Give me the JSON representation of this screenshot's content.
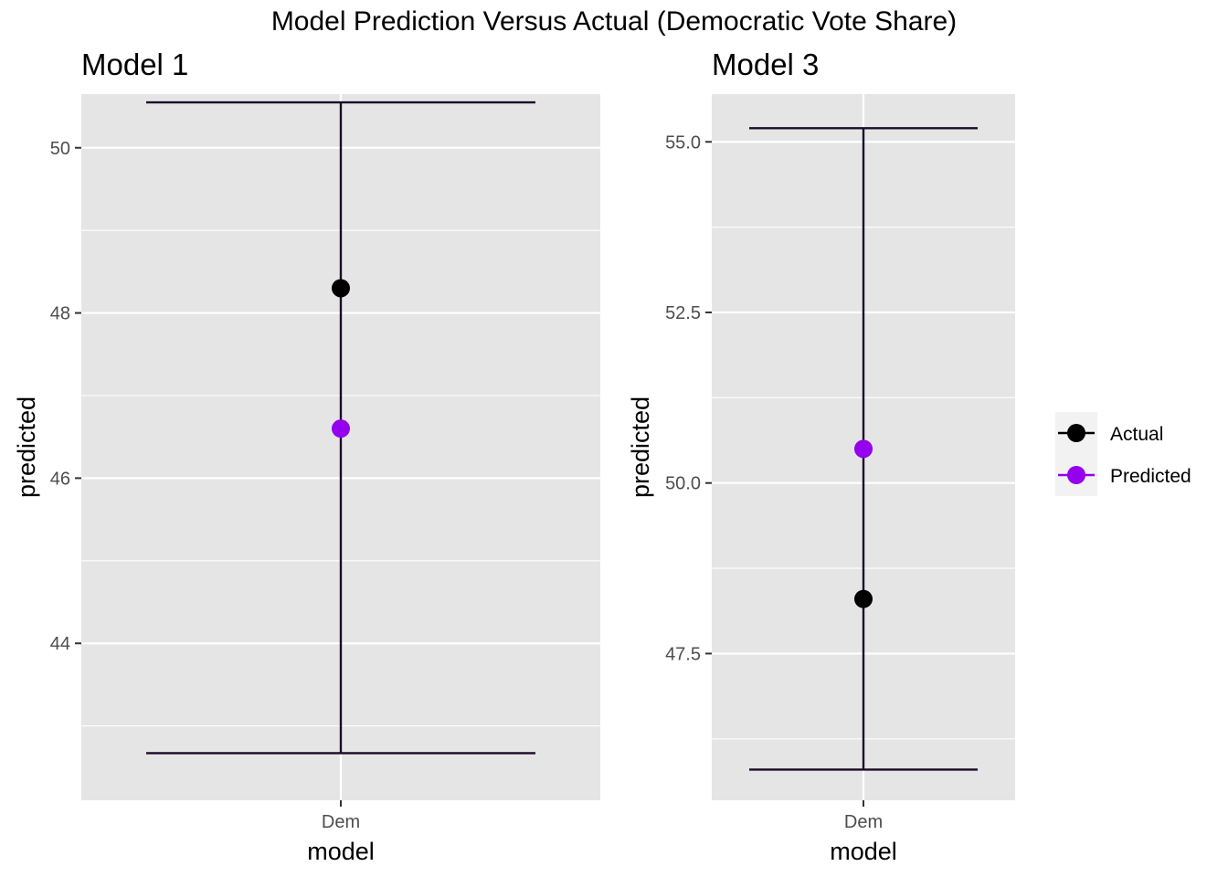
{
  "title": "Model Prediction Versus Actual (Democratic Vote Share)",
  "colors": {
    "panel_bg": "#e5e5e5",
    "grid": "#ffffff",
    "errorbar": "#1a0a2a",
    "actual": "#000000",
    "predicted": "#9400ee",
    "tick_text": "#4d4d4d"
  },
  "legend": {
    "placement": "right",
    "items": [
      {
        "label": "Actual",
        "color": "#000000"
      },
      {
        "label": "Predicted",
        "color": "#9400ee"
      }
    ]
  },
  "chart_data": [
    {
      "type": "errorbar-point",
      "title": "Model 1",
      "xlabel": "model",
      "ylabel": "predicted",
      "categories": [
        "Dem"
      ],
      "ylim": [
        42.1,
        50.65
      ],
      "yticks": [
        44,
        46,
        48,
        50
      ],
      "yticklabels": [
        "44",
        "46",
        "48",
        "50"
      ],
      "errorbar": {
        "category": "Dem",
        "ymin": 42.67,
        "ymax": 50.55
      },
      "series": [
        {
          "name": "Actual",
          "values": [
            48.3
          ]
        },
        {
          "name": "Predicted",
          "values": [
            46.6
          ]
        }
      ],
      "grid": true
    },
    {
      "type": "errorbar-point",
      "title": "Model 3",
      "xlabel": "model",
      "ylabel": "predicted",
      "categories": [
        "Dem"
      ],
      "ylim": [
        45.35,
        55.7
      ],
      "yticks": [
        47.5,
        50.0,
        52.5,
        55.0
      ],
      "yticklabels": [
        "47.5",
        "50.0",
        "52.5",
        "55.0"
      ],
      "errorbar": {
        "category": "Dem",
        "ymin": 45.8,
        "ymax": 55.2
      },
      "series": [
        {
          "name": "Actual",
          "values": [
            48.3
          ]
        },
        {
          "name": "Predicted",
          "values": [
            50.5
          ]
        }
      ],
      "grid": true
    }
  ]
}
